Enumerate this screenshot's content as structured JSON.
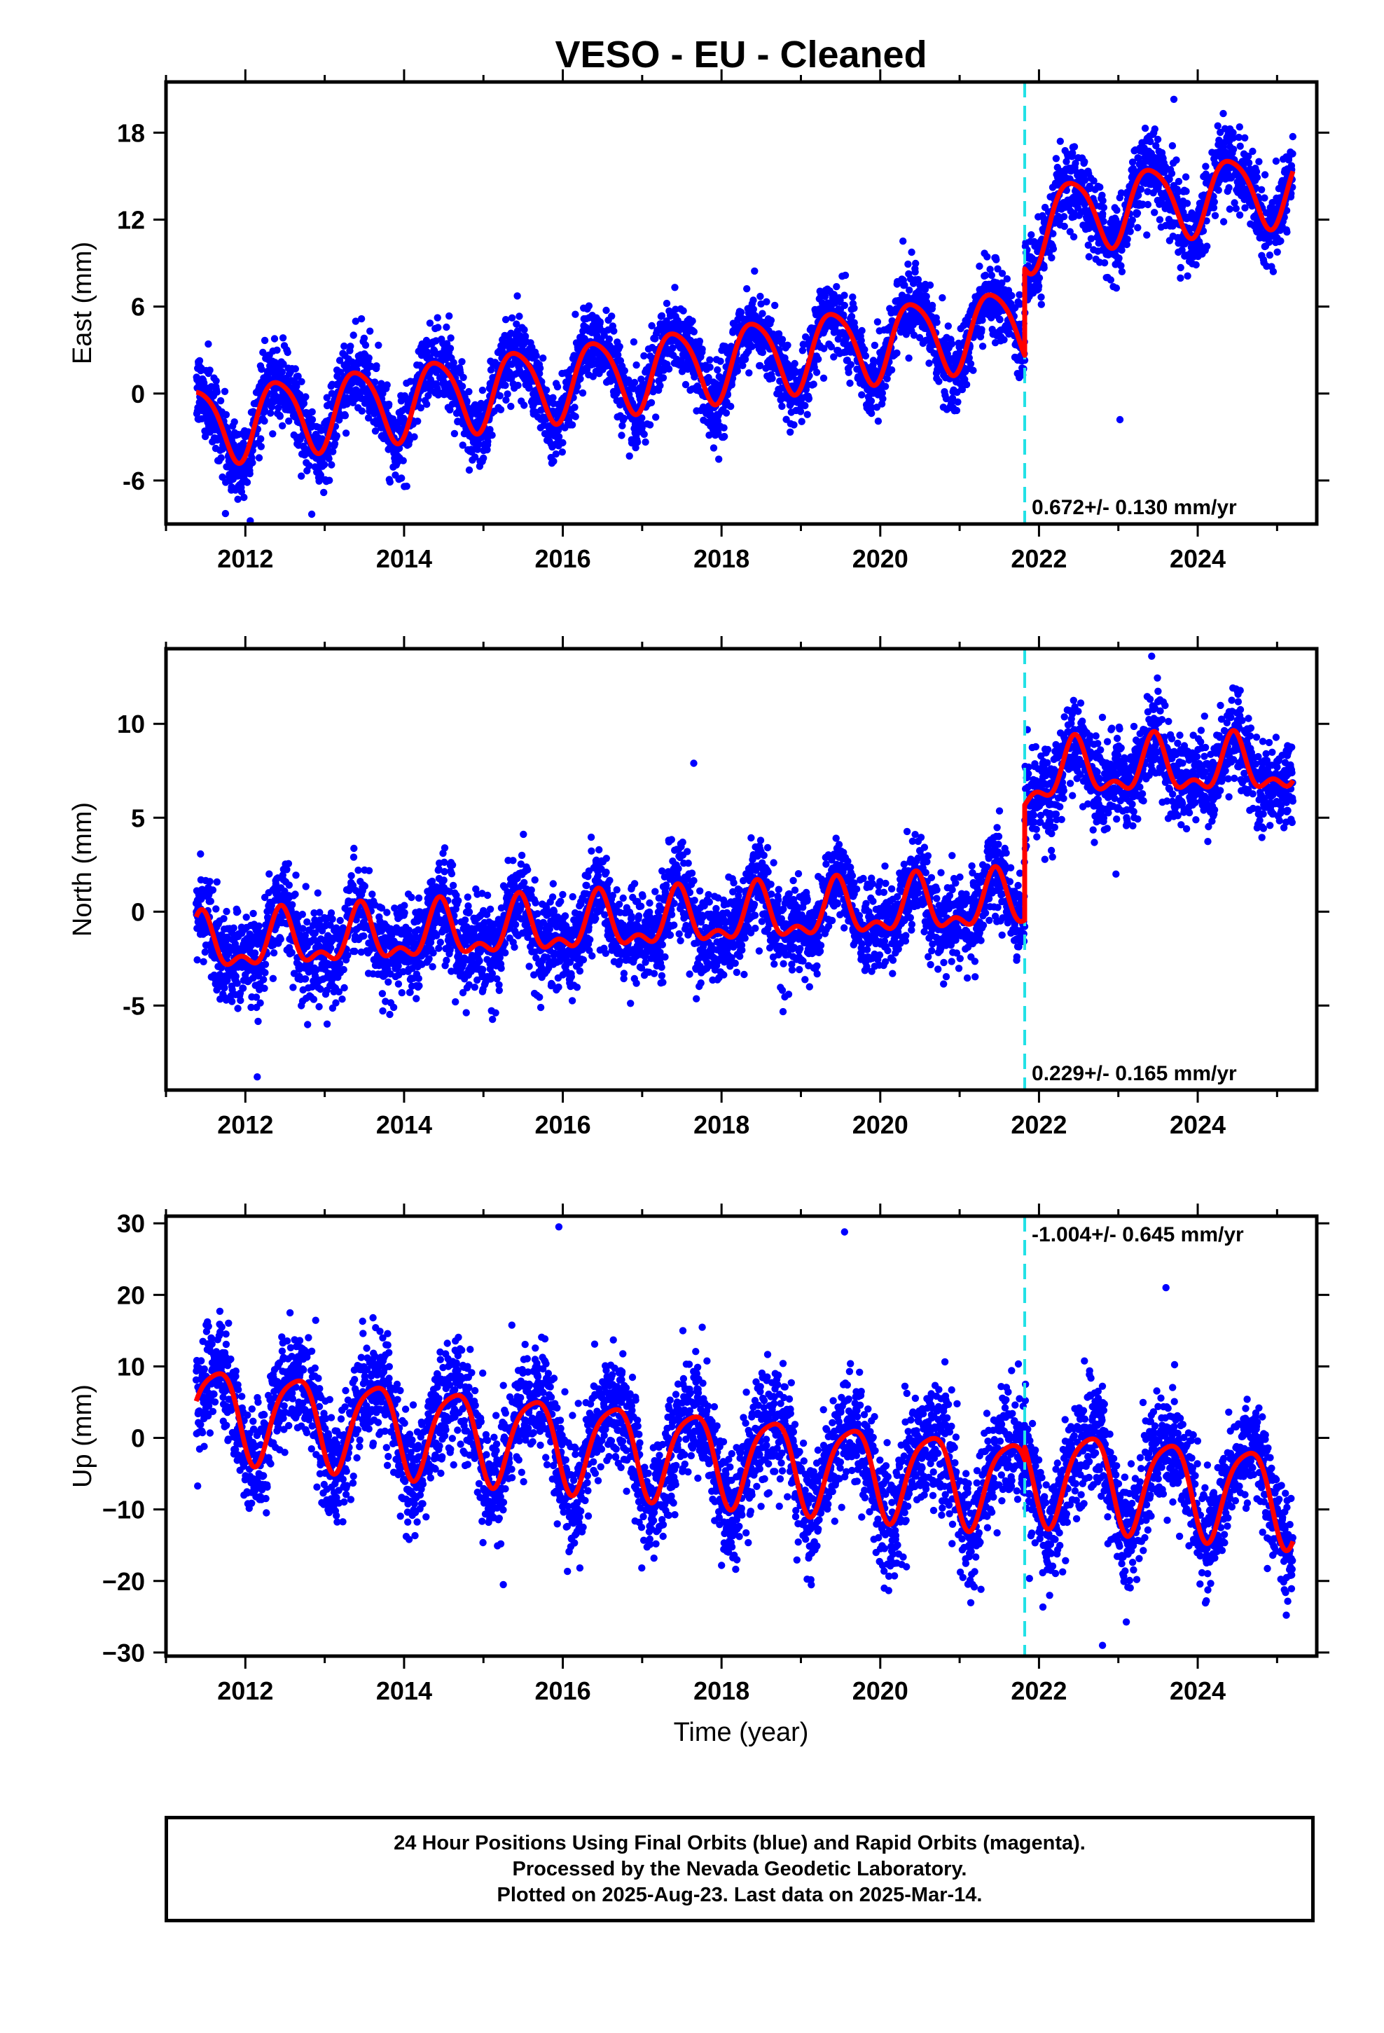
{
  "figure": {
    "title": "VESO  - EU - Cleaned",
    "footer_lines": [
      "24 Hour Positions Using Final Orbits (blue) and Rapid Orbits (magenta).",
      "Processed by the Nevada Geodetic Laboratory.",
      "Plotted on 2025-Aug-23. Last data on 2025-Mar-14."
    ]
  },
  "chart_data": [
    {
      "type": "scatter",
      "ylabel": "East (mm)",
      "xlim": [
        2011.0,
        2025.5
      ],
      "ylim": [
        -9,
        21.5
      ],
      "yticks": [
        -6,
        0,
        6,
        12,
        18
      ],
      "xticks": [
        2012,
        2014,
        2016,
        2018,
        2020,
        2022,
        2024
      ],
      "xtick_labels": [
        "2012",
        "2014",
        "2016",
        "2018",
        "2020",
        "2022",
        "2024"
      ],
      "grid": false,
      "rate_label": "0.672+/- 0.130 mm/yr",
      "rate_label_position": "bottom",
      "equipment_change_epoch": 2021.82,
      "data_span": [
        2011.38,
        2025.2
      ],
      "colors": {
        "points": "#0000ff",
        "model": "#ff0000",
        "equipment_change": "#22e1e6"
      },
      "model": {
        "offset_before": -2.2,
        "trend": 0.672,
        "ref_year": 2011.4,
        "annual_amp": 2.6,
        "annual_phase": 0.41,
        "semiannual_amp": 0.4,
        "semiannual_phase": 0.2,
        "offset_after": 13.3,
        "trend_after": 0.6,
        "annual_amp_after": 2.5,
        "postseismic_amp": -1.6,
        "postseismic_tau": 0.35,
        "scatter": 1.3
      },
      "outliers": [
        [
          2023.02,
          -1.8
        ],
        [
          2022.85,
          8.0
        ],
        [
          2023.7,
          20.3
        ]
      ]
    },
    {
      "type": "scatter",
      "ylabel": "North (mm)",
      "xlim": [
        2011.0,
        2025.5
      ],
      "ylim": [
        -9.5,
        14
      ],
      "yticks": [
        -5,
        0,
        5,
        10
      ],
      "xticks": [
        2012,
        2014,
        2016,
        2018,
        2020,
        2022,
        2024
      ],
      "xtick_labels": [
        "2012",
        "2014",
        "2016",
        "2018",
        "2020",
        "2022",
        "2024"
      ],
      "grid": false,
      "rate_label": "0.229+/- 0.165 mm/yr",
      "rate_label_position": "bottom",
      "equipment_change_epoch": 2021.82,
      "data_span": [
        2011.38,
        2025.2
      ],
      "colors": {
        "points": "#0000ff",
        "model": "#ff0000",
        "equipment_change": "#22e1e6"
      },
      "model": {
        "offset_before": -1.9,
        "trend": 0.229,
        "ref_year": 2011.4,
        "annual_amp": 1.3,
        "annual_phase": 0.45,
        "semiannual_amp": 0.7,
        "semiannual_phase": 0.45,
        "offset_after": 7.6,
        "trend_after": 0.05,
        "annual_amp_after": 1.3,
        "postseismic_amp": -0.9,
        "postseismic_tau": 0.3,
        "scatter": 1.2
      },
      "outliers": [
        [
          2017.65,
          7.9
        ],
        [
          2012.15,
          -8.8
        ],
        [
          2023.42,
          13.6
        ],
        [
          2022.97,
          2.0
        ]
      ]
    },
    {
      "type": "scatter",
      "ylabel": "Up (mm)",
      "xlabel": "Time (year)",
      "xlim": [
        2011.0,
        2025.5
      ],
      "ylim": [
        -30.5,
        31
      ],
      "yticks": [
        -30,
        -20,
        -10,
        0,
        10,
        20,
        30
      ],
      "ytick_labels": [
        "−30",
        "−20",
        "−10",
        "0",
        "10",
        "20",
        "30"
      ],
      "xticks": [
        2012,
        2014,
        2016,
        2018,
        2020,
        2022,
        2024
      ],
      "xtick_labels": [
        "2012",
        "2014",
        "2016",
        "2018",
        "2020",
        "2022",
        "2024"
      ],
      "grid": false,
      "rate_label": "-1.004+/- 0.645 mm/yr",
      "rate_label_position": "top",
      "equipment_change_epoch": 2021.82,
      "data_span": [
        2011.38,
        2025.2
      ],
      "colors": {
        "points": "#0000ff",
        "model": "#ff0000",
        "equipment_change": "#22e1e6"
      },
      "model": {
        "offset_before": 4.0,
        "trend": -1.004,
        "ref_year": 2011.4,
        "annual_amp": 6.2,
        "annual_phase": 0.63,
        "semiannual_amp": 1.2,
        "semiannual_phase": 0.35,
        "offset_after": -6.5,
        "trend_after": -1.0,
        "annual_amp_after": 6.5,
        "postseismic_amp": 0.0,
        "postseismic_tau": 0.3,
        "scatter": 4.0
      },
      "outliers": [
        [
          2015.95,
          29.5
        ],
        [
          2019.55,
          28.8
        ],
        [
          2022.8,
          -29.0
        ],
        [
          2020.05,
          -21.0
        ],
        [
          2015.25,
          -20.5
        ],
        [
          2023.6,
          21.0
        ]
      ]
    }
  ]
}
